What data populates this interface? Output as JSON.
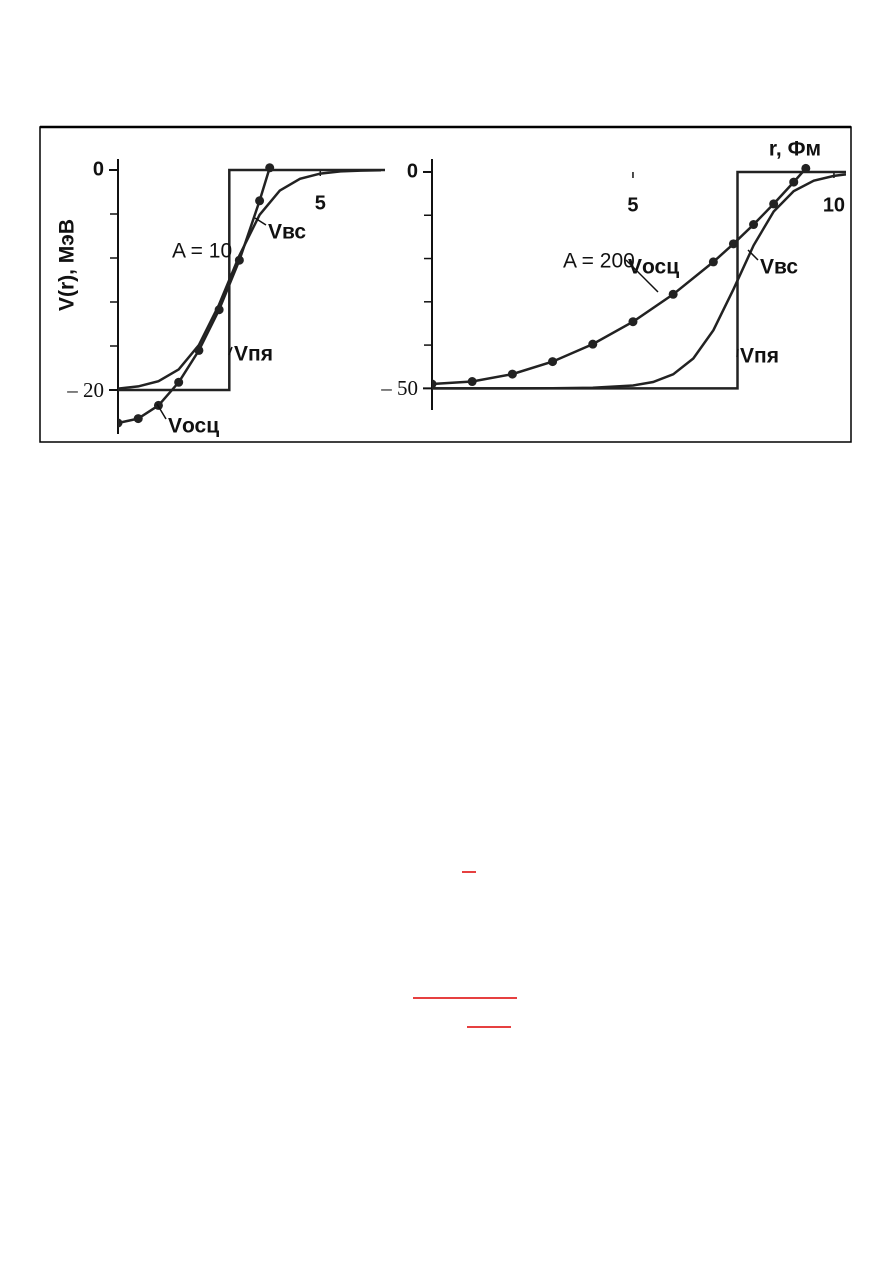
{
  "chart_data": [
    {
      "type": "line",
      "ylabel": "V(r), МэВ",
      "annotation": "A = 10",
      "xlim": [
        0,
        6.6
      ],
      "ylim": [
        -24,
        1
      ],
      "xticks": [
        5
      ],
      "yticks": [
        0,
        {
          "value": -20,
          "label": "– 20"
        }
      ],
      "minor_yticks": [
        -4,
        -8,
        -12,
        -16
      ],
      "series": [
        {
          "name": "Vосц",
          "color": "#222222",
          "markers": true,
          "x": [
            0,
            0.5,
            1,
            1.5,
            2,
            2.5,
            3,
            3.5,
            3.75
          ],
          "values": [
            -23,
            -22.6,
            -21.4,
            -19.3,
            -16.4,
            -12.7,
            -8.2,
            -2.8,
            0.2
          ]
        },
        {
          "name": "Vвс",
          "color": "#222222",
          "markers": false,
          "x": [
            0,
            0.5,
            1,
            1.5,
            2,
            2.5,
            3,
            3.5,
            4,
            4.5,
            5,
            5.5,
            6,
            6.5
          ],
          "values": [
            -19.87,
            -19.67,
            -19.2,
            -18.13,
            -15.92,
            -12.23,
            -7.77,
            -4.07,
            -1.87,
            -0.8,
            -0.33,
            -0.13,
            -0.05,
            -0.02
          ]
        },
        {
          "name": "Vпя",
          "color": "#222222",
          "markers": false,
          "x": [
            0,
            2.75,
            2.75,
            6.6
          ],
          "values": [
            -20,
            -20,
            0,
            0
          ]
        }
      ]
    },
    {
      "type": "line",
      "xlabel": "r, Фм",
      "annotation": "A = 200",
      "xlim": [
        0,
        10.3
      ],
      "ylim": [
        -55,
        3
      ],
      "xticks": [
        5,
        10
      ],
      "yticks": [
        0,
        {
          "value": -50,
          "label": "– 50"
        }
      ],
      "minor_yticks": [
        -10,
        -20,
        -30,
        -40
      ],
      "series": [
        {
          "name": "Vосц",
          "color": "#222222",
          "markers": true,
          "x": [
            0,
            1,
            2,
            3,
            4,
            5,
            6,
            7,
            7.5,
            8,
            8.5,
            9,
            9.3
          ],
          "values": [
            -49,
            -48.42,
            -46.7,
            -43.82,
            -39.78,
            -34.6,
            -28.26,
            -20.78,
            -16.6,
            -12.14,
            -7.38,
            -2.34,
            0.82
          ]
        },
        {
          "name": "Vвс",
          "color": "#222222",
          "markers": false,
          "x": [
            0,
            1,
            2,
            3,
            4,
            5,
            5.5,
            6,
            6.5,
            7,
            7.5,
            8,
            8.5,
            9,
            9.5,
            10,
            10.3
          ],
          "values": [
            -50,
            -50,
            -50,
            -49.98,
            -49.88,
            -49.35,
            -48.53,
            -46.75,
            -43.1,
            -36.55,
            -27.08,
            -16.96,
            -9.12,
            -4.42,
            -2.02,
            -0.9,
            -0.55
          ]
        },
        {
          "name": "Vпя",
          "color": "#222222",
          "markers": false,
          "x": [
            0,
            7.6,
            7.6,
            10.3
          ],
          "values": [
            -50,
            -50,
            0,
            0
          ]
        }
      ]
    }
  ]
}
